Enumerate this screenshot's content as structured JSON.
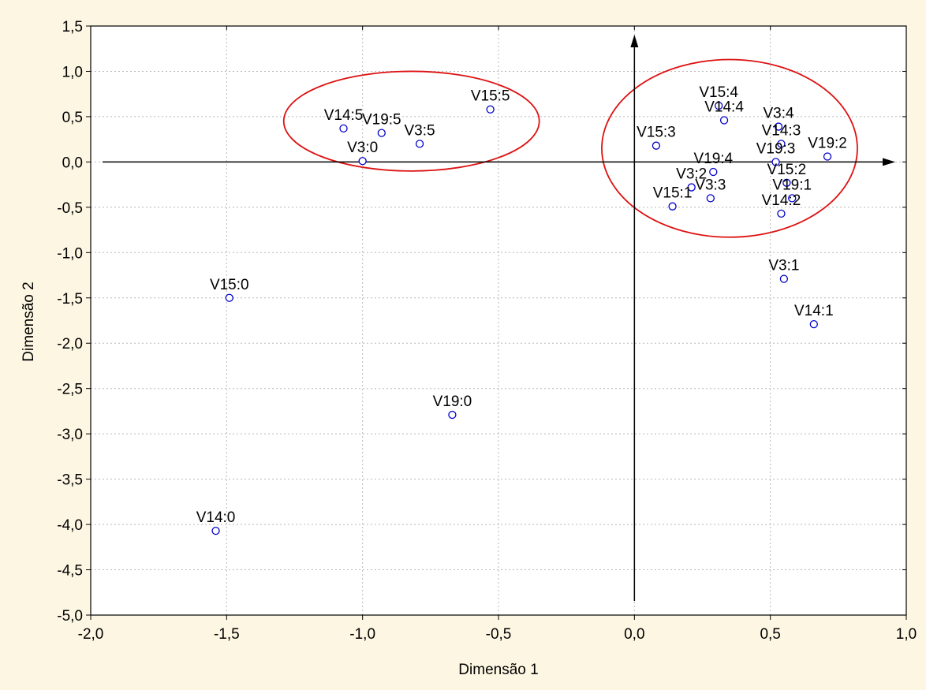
{
  "chart_data": {
    "type": "scatter",
    "xlabel": "Dimensão 1",
    "ylabel": "Dimensão 2",
    "xlim": [
      -2.0,
      1.0
    ],
    "ylim": [
      -5.0,
      1.5
    ],
    "xticks": [
      "-2,0",
      "-1,5",
      "-1,0",
      "-0,5",
      "0,0",
      "0,5",
      "1,0"
    ],
    "yticks": [
      "1,5",
      "1,0",
      "0,5",
      "0,0",
      "-0,5",
      "-1,0",
      "-1,5",
      "-2,0",
      "-2,5",
      "-3,0",
      "-3,5",
      "-4,0",
      "-4,5",
      "-5,0"
    ],
    "grid": true,
    "marker": "open-circle",
    "colors": {
      "background": "#fdf6e3",
      "plot": "#ffffff",
      "marker": "#0000cc",
      "ellipse": "#dd1111",
      "axis": "#000000"
    },
    "points": [
      {
        "label": "V14:5",
        "x": -1.07,
        "y": 0.37
      },
      {
        "label": "V19:5",
        "x": -0.93,
        "y": 0.32
      },
      {
        "label": "V3:5",
        "x": -0.79,
        "y": 0.2
      },
      {
        "label": "V3:0",
        "x": -1.0,
        "y": 0.01
      },
      {
        "label": "V15:5",
        "x": -0.53,
        "y": 0.58
      },
      {
        "label": "V15:4",
        "x": 0.31,
        "y": 0.62
      },
      {
        "label": "V14:4",
        "x": 0.33,
        "y": 0.46
      },
      {
        "label": "V3:4",
        "x": 0.53,
        "y": 0.39
      },
      {
        "label": "V14:3",
        "x": 0.54,
        "y": 0.2
      },
      {
        "label": "V15:3",
        "x": 0.08,
        "y": 0.18
      },
      {
        "label": "V19:3",
        "x": 0.52,
        "y": 0.0
      },
      {
        "label": "V19:2",
        "x": 0.71,
        "y": 0.06
      },
      {
        "label": "V19:4",
        "x": 0.29,
        "y": -0.11
      },
      {
        "label": "V15:2",
        "x": 0.56,
        "y": -0.23
      },
      {
        "label": "V3:2",
        "x": 0.21,
        "y": -0.28
      },
      {
        "label": "V3:3",
        "x": 0.28,
        "y": -0.4
      },
      {
        "label": "V19:1",
        "x": 0.58,
        "y": -0.4
      },
      {
        "label": "V15:1",
        "x": 0.14,
        "y": -0.49
      },
      {
        "label": "V14:2",
        "x": 0.54,
        "y": -0.57
      },
      {
        "label": "V3:1",
        "x": 0.55,
        "y": -1.29
      },
      {
        "label": "V14:1",
        "x": 0.66,
        "y": -1.79
      },
      {
        "label": "V15:0",
        "x": -1.49,
        "y": -1.5
      },
      {
        "label": "V19:0",
        "x": -0.67,
        "y": -2.79
      },
      {
        "label": "V14:0",
        "x": -1.54,
        "y": -4.07
      }
    ],
    "ellipses": [
      {
        "cx": -0.82,
        "cy": 0.45,
        "rx": 0.47,
        "ry": 0.55
      },
      {
        "cx": 0.35,
        "cy": 0.15,
        "rx": 0.47,
        "ry": 0.98
      }
    ]
  }
}
